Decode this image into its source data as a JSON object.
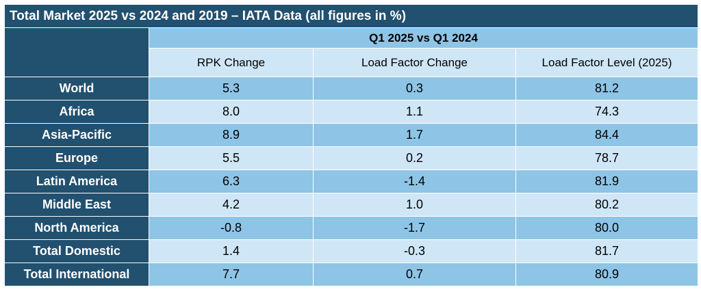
{
  "title": "Total Market 2025 vs 2024 and 2019 – IATA Data (all figures in %)",
  "period_header": "Q1 2025 vs Q1 2024",
  "columns": [
    "RPK Change",
    "Load Factor Change",
    "Load Factor Level (2025)"
  ],
  "rows": [
    {
      "region": "World",
      "values": [
        "5.3",
        "0.3",
        "81.2"
      ]
    },
    {
      "region": "Africa",
      "values": [
        "8.0",
        "1.1",
        "74.3"
      ]
    },
    {
      "region": "Asia-Pacific",
      "values": [
        "8.9",
        "1.7",
        "84.4"
      ]
    },
    {
      "region": "Europe",
      "values": [
        "5.5",
        "0.2",
        "78.7"
      ]
    },
    {
      "region": "Latin America",
      "values": [
        "6.3",
        "-1.4",
        "81.9"
      ]
    },
    {
      "region": "Middle East",
      "values": [
        "4.2",
        "1.0",
        "80.2"
      ]
    },
    {
      "region": "North America",
      "values": [
        "-0.8",
        "-1.7",
        "80.0"
      ]
    },
    {
      "region": "Total Domestic",
      "values": [
        "1.4",
        "-0.3",
        "81.7"
      ]
    },
    {
      "region": "Total International",
      "values": [
        "7.7",
        "0.7",
        "80.9"
      ]
    }
  ],
  "colors": {
    "header_dark": "#22506f",
    "row_dark": "#8ec4e6",
    "row_light": "#cfe6f6",
    "border": "#ffffff"
  }
}
